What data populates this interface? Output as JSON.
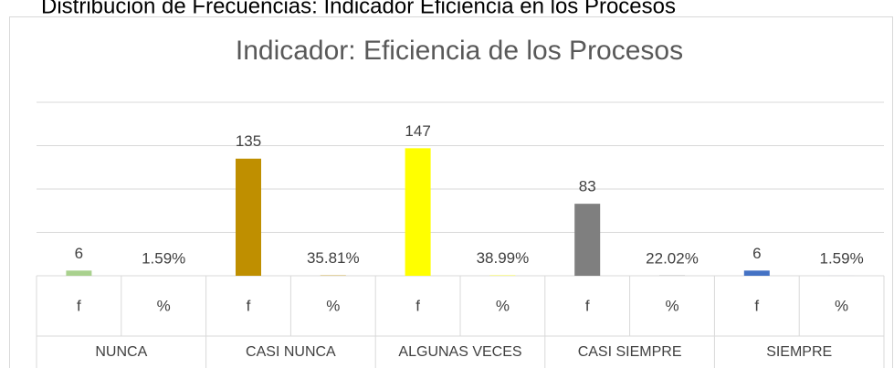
{
  "heading": "Distribución de Frecuencias: Indicador Eficiencia en los Procesos",
  "chart_data": {
    "type": "bar",
    "title": "Indicador: Eficiencia de los Procesos",
    "groups": [
      "NUNCA",
      "CASI NUNCA",
      "ALGUNAS VECES",
      "CASI SIEMPRE",
      "SIEMPRE"
    ],
    "categories": [
      "f",
      "%",
      "f",
      "%",
      "f",
      "%",
      "f",
      "%",
      "f",
      "%"
    ],
    "values": [
      6,
      0.0159,
      135,
      0.3581,
      147,
      0.3899,
      83,
      0.2202,
      6,
      0.0159
    ],
    "value_labels": [
      "6",
      "1.59%",
      "135",
      "35.81%",
      "147",
      "38.99%",
      "83",
      "22.02%",
      "6",
      "1.59%"
    ],
    "colors": [
      "#a9d18e",
      "#bf8f00",
      "#ffff00",
      "#7f7f7f",
      "#4472c4"
    ],
    "ylim": [
      0,
      200
    ],
    "yticks": [
      0,
      50,
      100,
      150,
      200
    ],
    "grid": true
  }
}
